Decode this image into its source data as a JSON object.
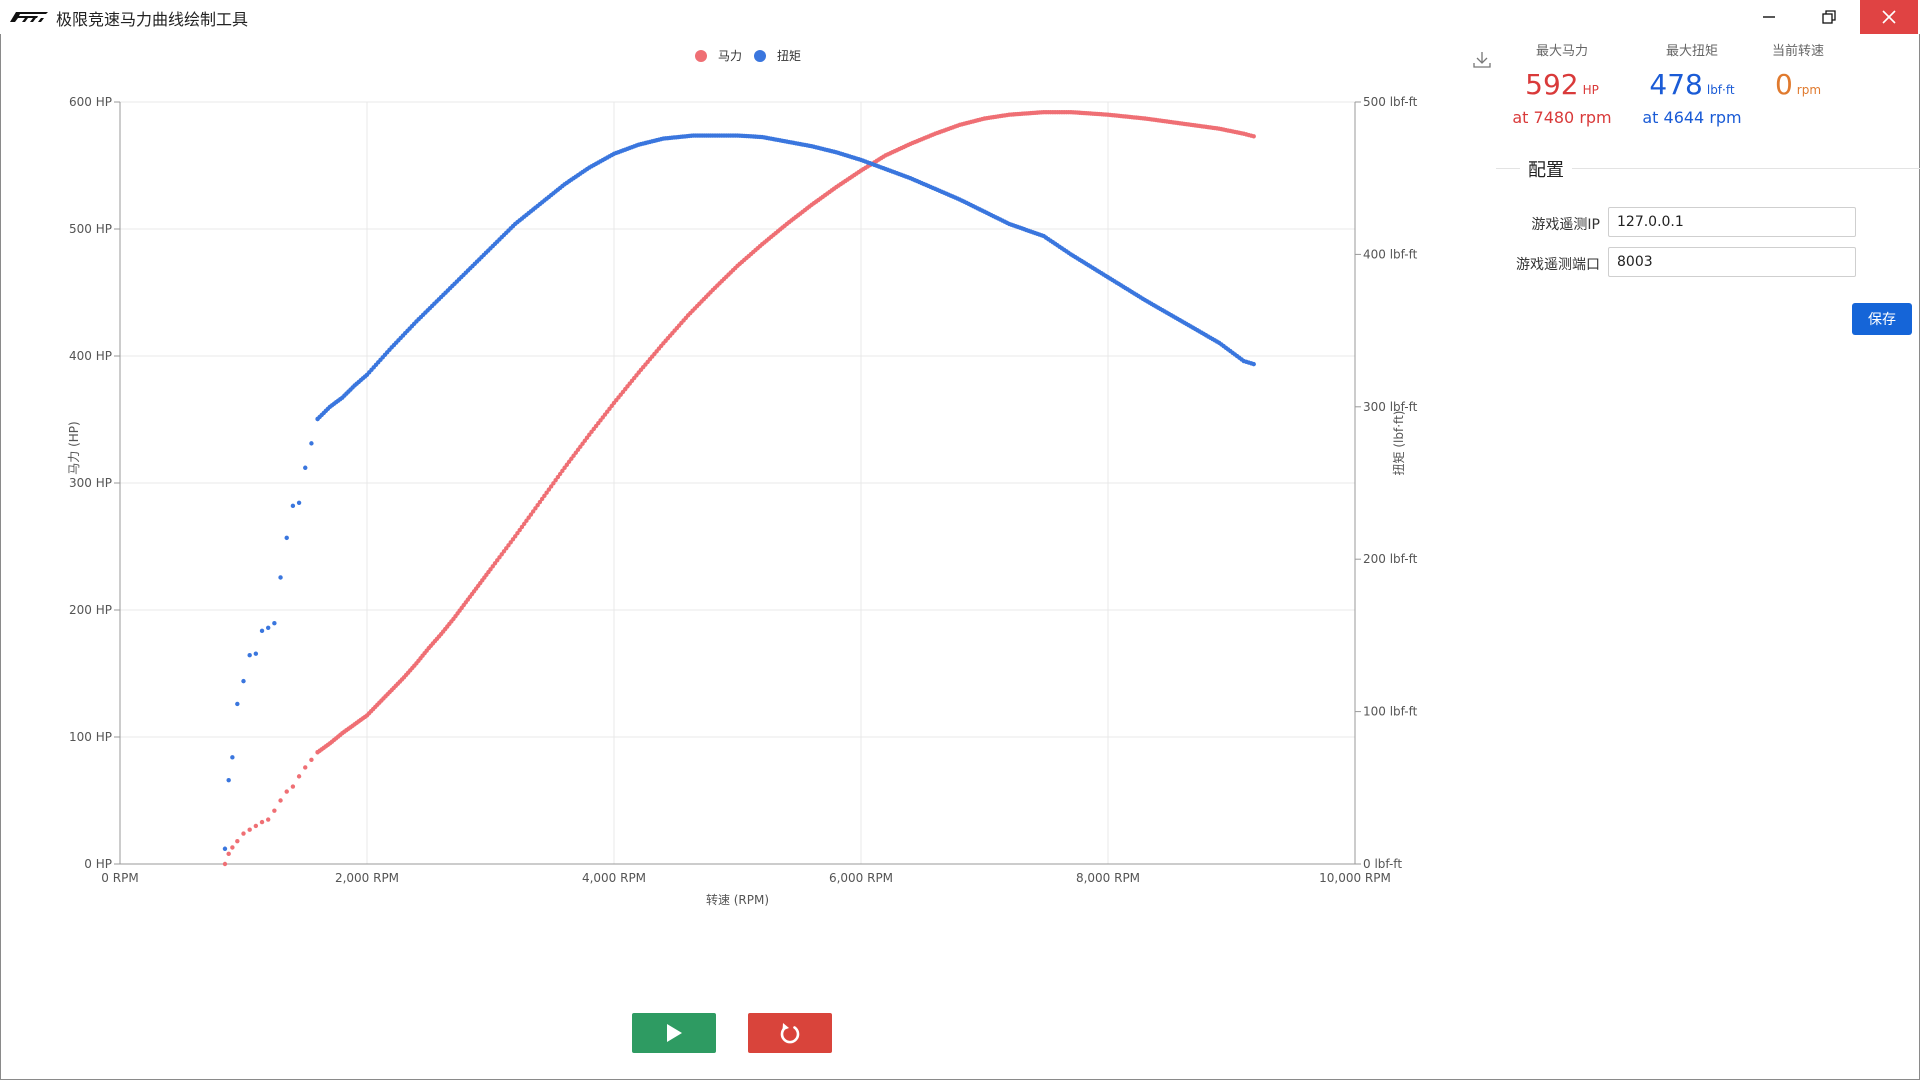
{
  "window": {
    "title": "极限竞速马力曲线绘制工具"
  },
  "legend": {
    "hp_label": "马力",
    "torque_label": "扭矩"
  },
  "colors": {
    "hp": "#ef6f74",
    "torque": "#3a76de",
    "max_hp_text": "#d93a3a",
    "max_torque_text": "#1a5bd6",
    "rpm_text": "#e07a2e"
  },
  "stats": {
    "max_hp": {
      "label": "最大马力",
      "value": "592",
      "unit": "HP",
      "sub": "at 7480 rpm"
    },
    "max_torque": {
      "label": "最大扭矩",
      "value": "478",
      "unit": "lbf·ft",
      "sub": "at 4644 rpm"
    },
    "current_rpm": {
      "label": "当前转速",
      "value": "0",
      "unit": "rpm"
    }
  },
  "config": {
    "title": "配置",
    "ip_label": "游戏遥测IP",
    "ip_value": "127.0.0.1",
    "port_label": "游戏遥测端口",
    "port_value": "8003",
    "save_label": "保存"
  },
  "chart_data": {
    "type": "scatter",
    "xlabel": "转速 (RPM)",
    "ylabel_left": "马力 (HP)",
    "ylabel_right": "扭矩 (lbf·ft)",
    "xlim": [
      0,
      10000
    ],
    "ylim_left": [
      0,
      600
    ],
    "ylim_right": [
      0,
      500
    ],
    "x_ticks": [
      "0 RPM",
      "2,000 RPM",
      "4,000 RPM",
      "6,000 RPM",
      "8,000 RPM",
      "10,000 RPM"
    ],
    "y_left_ticks": [
      "0 HP",
      "100 HP",
      "200 HP",
      "300 HP",
      "400 HP",
      "500 HP",
      "600 HP"
    ],
    "y_right_ticks": [
      "0 lbf-ft",
      "100 lbf-ft",
      "200 lbf-ft",
      "300 lbf-ft",
      "400 lbf-ft",
      "500 lbf-ft"
    ],
    "grid": true,
    "legend_position": "top-center",
    "series": [
      {
        "name": "马力",
        "axis": "left",
        "points": [
          [
            850,
            0
          ],
          [
            880,
            8
          ],
          [
            910,
            13
          ],
          [
            950,
            18
          ],
          [
            1000,
            24
          ],
          [
            1050,
            27
          ],
          [
            1100,
            30
          ],
          [
            1150,
            33
          ],
          [
            1200,
            35
          ],
          [
            1250,
            42
          ],
          [
            1300,
            50
          ],
          [
            1350,
            57
          ],
          [
            1400,
            61
          ],
          [
            1450,
            69
          ],
          [
            1500,
            76
          ],
          [
            1550,
            82
          ],
          [
            1600,
            88
          ],
          [
            1700,
            95
          ],
          [
            1800,
            103
          ],
          [
            1900,
            110
          ],
          [
            2000,
            117
          ],
          [
            2100,
            127
          ],
          [
            2200,
            137
          ],
          [
            2300,
            147
          ],
          [
            2400,
            158
          ],
          [
            2500,
            170
          ],
          [
            2600,
            181
          ],
          [
            2700,
            193
          ],
          [
            2800,
            206
          ],
          [
            2900,
            219
          ],
          [
            3000,
            232
          ],
          [
            3200,
            258
          ],
          [
            3400,
            285
          ],
          [
            3600,
            312
          ],
          [
            3800,
            338
          ],
          [
            4000,
            363
          ],
          [
            4200,
            387
          ],
          [
            4400,
            410
          ],
          [
            4600,
            432
          ],
          [
            4800,
            452
          ],
          [
            5000,
            471
          ],
          [
            5200,
            488
          ],
          [
            5400,
            504
          ],
          [
            5600,
            519
          ],
          [
            5800,
            533
          ],
          [
            6000,
            546
          ],
          [
            6200,
            558
          ],
          [
            6400,
            567
          ],
          [
            6600,
            575
          ],
          [
            6800,
            582
          ],
          [
            7000,
            587
          ],
          [
            7200,
            590
          ],
          [
            7480,
            592
          ],
          [
            7700,
            592
          ],
          [
            8000,
            590
          ],
          [
            8300,
            587
          ],
          [
            8600,
            583
          ],
          [
            8900,
            579
          ],
          [
            9100,
            575
          ],
          [
            9180,
            573
          ]
        ]
      },
      {
        "name": "扭矩",
        "axis": "right",
        "points": [
          [
            850,
            10
          ],
          [
            880,
            55
          ],
          [
            910,
            70
          ],
          [
            950,
            105
          ],
          [
            1000,
            120
          ],
          [
            1050,
            137
          ],
          [
            1100,
            138
          ],
          [
            1150,
            153
          ],
          [
            1200,
            155
          ],
          [
            1250,
            158
          ],
          [
            1300,
            188
          ],
          [
            1350,
            214
          ],
          [
            1400,
            235
          ],
          [
            1450,
            237
          ],
          [
            1500,
            260
          ],
          [
            1550,
            276
          ],
          [
            1600,
            292
          ],
          [
            1650,
            296
          ],
          [
            1700,
            300
          ],
          [
            1800,
            306
          ],
          [
            1900,
            314
          ],
          [
            2000,
            321
          ],
          [
            2200,
            339
          ],
          [
            2400,
            356
          ],
          [
            2600,
            372
          ],
          [
            2800,
            388
          ],
          [
            3000,
            404
          ],
          [
            3200,
            420
          ],
          [
            3400,
            433
          ],
          [
            3600,
            446
          ],
          [
            3800,
            457
          ],
          [
            4000,
            466
          ],
          [
            4200,
            472
          ],
          [
            4400,
            476
          ],
          [
            4644,
            478
          ],
          [
            4800,
            478
          ],
          [
            5000,
            478
          ],
          [
            5200,
            477
          ],
          [
            5400,
            474
          ],
          [
            5600,
            471
          ],
          [
            5800,
            467
          ],
          [
            6000,
            462
          ],
          [
            6200,
            456
          ],
          [
            6400,
            450
          ],
          [
            6600,
            443
          ],
          [
            6800,
            436
          ],
          [
            7000,
            428
          ],
          [
            7200,
            420
          ],
          [
            7480,
            412
          ],
          [
            7700,
            400
          ],
          [
            8000,
            385
          ],
          [
            8300,
            370
          ],
          [
            8600,
            356
          ],
          [
            8900,
            342
          ],
          [
            9100,
            330
          ],
          [
            9180,
            328
          ]
        ]
      }
    ]
  }
}
